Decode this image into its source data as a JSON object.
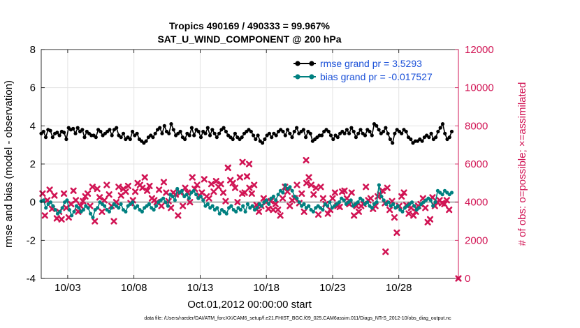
{
  "chart_data": {
    "type": "line",
    "title_line1": "Tropics 490169 / 490333 = 99.967%",
    "title_line2": "SAT_U_WIND_COMPONENT @ 200 hPa",
    "xlabel": "Oct.01,2012 00:00:00 start",
    "ylabel_left": "rmse and bias (model - observation)",
    "ylabel_right": "# of obs: o=possible; ×=assimilated",
    "footnote": "data file: /Users/raeder/DAI/ATM_forcXX/CAM6_setup/f.e21.FHIST_BGC.f09_025.CAM6assim.011/Diags_NTrS_2012-10/obs_diag_output.nc",
    "xlim": [
      1,
      32.5
    ],
    "ylim_left": [
      -4,
      8
    ],
    "ylim_right": [
      0,
      12000
    ],
    "grid": true,
    "legend_location": "top-right",
    "x_ticks": [
      {
        "value": 3,
        "label": "10/03"
      },
      {
        "value": 8,
        "label": "10/08"
      },
      {
        "value": 13,
        "label": "10/13"
      },
      {
        "value": 18,
        "label": "10/18"
      },
      {
        "value": 23,
        "label": "10/23"
      },
      {
        "value": 28,
        "label": "10/28"
      }
    ],
    "y_ticks_left": [
      {
        "value": -4,
        "label": "-4"
      },
      {
        "value": -2,
        "label": "-2"
      },
      {
        "value": 0,
        "label": "0"
      },
      {
        "value": 2,
        "label": "2"
      },
      {
        "value": 4,
        "label": "4"
      },
      {
        "value": 6,
        "label": "6"
      },
      {
        "value": 8,
        "label": "8"
      }
    ],
    "y_ticks_right": [
      {
        "value": 0,
        "label": "0"
      },
      {
        "value": 2000,
        "label": "2000"
      },
      {
        "value": 4000,
        "label": "4000"
      },
      {
        "value": 6000,
        "label": "6000"
      },
      {
        "value": 8000,
        "label": "8000"
      },
      {
        "value": 10000,
        "label": "10000"
      },
      {
        "value": 12000,
        "label": "12000"
      }
    ],
    "colors": {
      "rmse": "#000000",
      "bias": "#008080",
      "obs": "#d11454",
      "zero_line": "#b0b0b0",
      "grid": "#e3e3e3",
      "legend_text": "#1a50d8"
    },
    "series": [
      {
        "name": "rmse grand pr = 3.5293",
        "axis": "left",
        "values": [
          3.6,
          3.7,
          3.4,
          3.8,
          3.75,
          3.4,
          3.6,
          3.65,
          3.5,
          3.7,
          3.65,
          3.3,
          3.9,
          3.8,
          3.85,
          3.6,
          3.9,
          3.7,
          3.8,
          3.4,
          3.7,
          3.6,
          3.5,
          3.5,
          3.4,
          3.8,
          3.7,
          3.5,
          3.6,
          3.7,
          3.8,
          3.5,
          3.8,
          3.9,
          3.5,
          3.4,
          3.6,
          3.3,
          3.4,
          3.3,
          3.7,
          3.5,
          3.6,
          3.3,
          3.2,
          3.1,
          3.2,
          3.4,
          3.5,
          3.4,
          3.6,
          3.8,
          3.9,
          3.6,
          4.0,
          3.7,
          3.6,
          4.1,
          3.8,
          3.5,
          3.6,
          3.7,
          3.4,
          3.3,
          3.6,
          3.5,
          3.9,
          3.5,
          3.8,
          3.7,
          3.4,
          3.7,
          3.6,
          3.9,
          3.5,
          3.8,
          3.6,
          3.4,
          3.6,
          3.8,
          3.9,
          3.7,
          3.5,
          3.4,
          3.3,
          3.6,
          3.4,
          3.3,
          3.4,
          3.6,
          3.7,
          3.8,
          3.7,
          3.5,
          3.3,
          3.5,
          3.2,
          3.1,
          3.3,
          3.5,
          3.6,
          3.4,
          3.6,
          3.5,
          3.7,
          3.8,
          3.7,
          3.5,
          3.8,
          3.6,
          3.4,
          3.7,
          3.9,
          3.6,
          3.7,
          3.8,
          3.4,
          3.7,
          3.6,
          3.2,
          3.3,
          3.4,
          3.5,
          3.5,
          3.7,
          3.8,
          3.7,
          3.5,
          3.3,
          3.5,
          3.4,
          3.6,
          3.7,
          3.6,
          3.8,
          3.6,
          3.9,
          3.7,
          3.4,
          3.6,
          3.8,
          3.6,
          3.5,
          3.8,
          3.7,
          3.5,
          4.1,
          4.0,
          3.8,
          3.6,
          3.7,
          3.9,
          3.6,
          3.3,
          3.1,
          3.6,
          3.8,
          3.7,
          3.6,
          3.8,
          3.7,
          3.4,
          3.3,
          3.1,
          3.2,
          3.2,
          3.3,
          3.2,
          3.4,
          3.5,
          3.4,
          3.6,
          3.3,
          3.4,
          3.7,
          3.9,
          4.1,
          3.6,
          3.3,
          3.4,
          3.7
        ]
      },
      {
        "name": "bias grand pr = -0.017527",
        "axis": "left",
        "values": [
          0.05,
          0.1,
          -0.3,
          -0.1,
          0.0,
          -0.2,
          -0.4,
          -0.6,
          -0.5,
          -0.3,
          0.0,
          0.1,
          -0.4,
          -0.7,
          -0.5,
          -0.2,
          -0.3,
          -0.5,
          -0.4,
          -0.2,
          -0.3,
          -0.6,
          -0.8,
          -0.4,
          -0.3,
          0.0,
          -0.1,
          -0.2,
          -0.4,
          -0.5,
          -0.3,
          -0.1,
          -0.2,
          -0.3,
          -0.1,
          -0.4,
          -0.5,
          -0.2,
          -0.1,
          0.0,
          -0.3,
          -0.2,
          -0.4,
          -0.5,
          -0.3,
          -0.2,
          -0.1,
          -0.3,
          -0.4,
          -0.2,
          0.0,
          0.1,
          0.2,
          0.0,
          -0.2,
          0.4,
          0.3,
          0.1,
          0.7,
          0.5,
          0.6,
          0.3,
          0.4,
          0.2,
          0.5,
          0.6,
          0.4,
          0.2,
          0.3,
          0.1,
          -0.2,
          -0.1,
          -0.3,
          -0.2,
          -0.4,
          -0.3,
          -0.6,
          -0.4,
          -0.5,
          -0.6,
          -0.3,
          -0.2,
          -0.4,
          -0.5,
          -0.3,
          -0.4,
          -0.2,
          -0.5,
          -0.1,
          -0.3,
          -0.2,
          -0.4,
          -0.3,
          -0.1,
          -0.2,
          0.0,
          0.1,
          -0.1,
          0.2,
          0.3,
          0.1,
          0.4,
          0.6,
          0.5,
          0.9,
          0.7,
          0.8,
          0.6,
          0.3,
          0.2,
          0.0,
          -0.2,
          -0.1,
          -0.3,
          -0.2,
          -0.4,
          -0.5,
          -0.3,
          -0.2,
          -0.3,
          -0.4,
          -0.1,
          -0.2,
          0.0,
          -0.3,
          -0.2,
          -0.1,
          0.0,
          0.2,
          0.1,
          -0.1,
          0.0,
          0.1,
          -0.2,
          -0.1,
          0.0,
          0.2,
          0.1,
          -0.1,
          0.0,
          -0.2,
          -0.3,
          -0.1,
          0.0,
          0.9,
          0.3,
          0.1,
          -0.1,
          0.0,
          -0.2,
          -0.1,
          -0.3,
          -0.2,
          -0.4,
          -0.5,
          -0.3,
          -0.2,
          -0.1,
          0.0,
          -0.2,
          -0.4,
          -0.3,
          -0.1,
          0.0,
          0.1,
          0.2,
          0.1,
          -0.2,
          0.0,
          0.6,
          0.5,
          0.4,
          0.6,
          0.5,
          0.4,
          0.5
        ]
      },
      {
        "name": "# of obs assimilated",
        "axis": "right",
        "marker": "x",
        "values": [
          4450,
          3300,
          4100,
          4650,
          3650,
          4350,
          3150,
          3500,
          3100,
          4450,
          3700,
          3200,
          3900,
          4600,
          4100,
          3500,
          3800,
          4050,
          4300,
          4450,
          3800,
          4800,
          3000,
          4700,
          4250,
          3500,
          4100,
          4900,
          4400,
          3800,
          3000,
          4000,
          4800,
          4350,
          4700,
          4550,
          4850,
          3950,
          4100,
          4550,
          5000,
          4900,
          4750,
          5300,
          4600,
          4850,
          4200,
          4100,
          4000,
          4650,
          3800,
          5050,
          4500,
          4050,
          3700,
          4500,
          4400,
          3300,
          4500,
          3800,
          4750,
          4500,
          4000,
          5300,
          4700,
          4900,
          4350,
          4500,
          5200,
          4300,
          4200,
          4950,
          4550,
          5100,
          4800,
          4950,
          4500,
          4050,
          5800,
          5150,
          5000,
          4750,
          4000,
          5300,
          4450,
          4500,
          5350,
          4750,
          4450,
          4900,
          3850,
          3500,
          3800,
          4200,
          4000,
          3650,
          4050,
          3600,
          3900,
          3600,
          3300,
          4200,
          4800,
          4550,
          3800,
          4100,
          4200,
          4900,
          3950,
          4450,
          3500,
          5000,
          5300,
          4900,
          4400,
          4750,
          3350,
          4800,
          4200,
          3900,
          3400,
          3600,
          4200,
          4500,
          3800,
          3750,
          4550,
          4600,
          4200,
          3900,
          4500,
          3300,
          3800,
          3500,
          3800,
          3900,
          4800,
          4100,
          4200,
          3650,
          3800,
          4300,
          4400,
          4600,
          3950,
          4750,
          3600,
          4050,
          3200,
          2400,
          3800,
          4300,
          4500,
          3850,
          3400,
          3700,
          3300,
          3500,
          3800,
          3900,
          4200,
          3700,
          2950,
          3100,
          4250,
          3800,
          4000,
          4100,
          3950,
          3900,
          4100,
          3600
        ]
      }
    ],
    "obs_outliers": [
      {
        "x": 16.2,
        "value": 6100
      },
      {
        "x": 16.7,
        "value": 6000
      },
      {
        "x": 21.0,
        "value": 6200
      },
      {
        "x": 15.1,
        "value": 5800
      },
      {
        "x": 27.0,
        "value": 1400
      },
      {
        "x": 32.5,
        "value": 0
      }
    ]
  }
}
